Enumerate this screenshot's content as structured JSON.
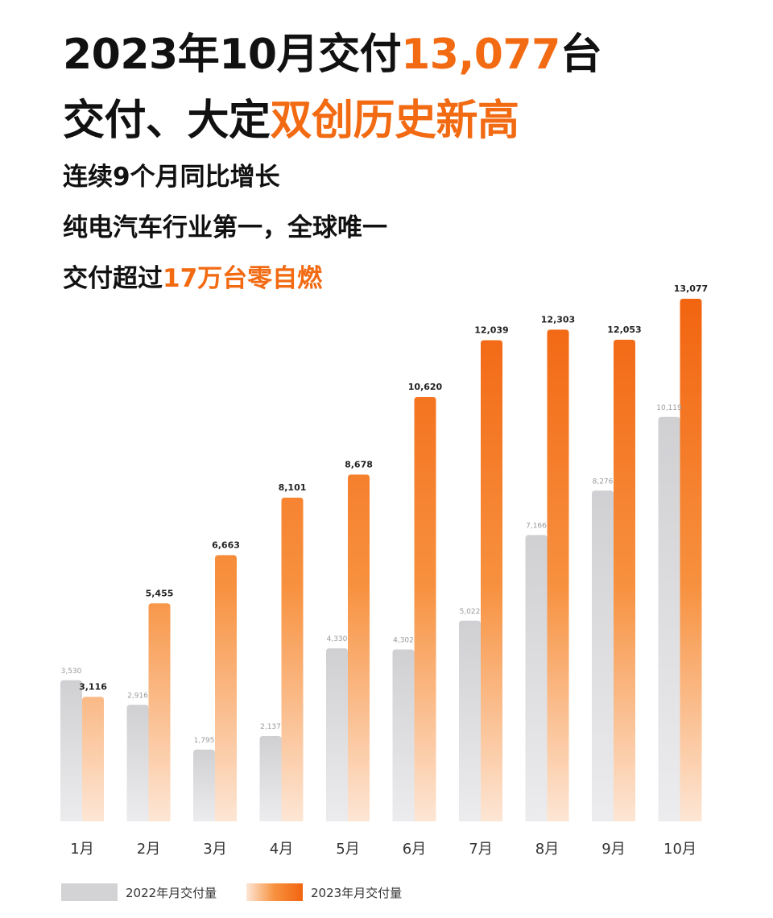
{
  "headline": {
    "line1_prefix": "2023年10月交付",
    "line1_highlight": "13,077",
    "line1_suffix": "台",
    "line2_prefix": "交付、大定",
    "line2_highlight": "双创历史新高"
  },
  "subheads": {
    "line1": "连续9个月同比增长",
    "line2": "纯电汽车行业第一，全球唯一",
    "line3_prefix": "交付超过",
    "line3_highlight": "17万台零自燃"
  },
  "colors": {
    "accent": "#f26a12",
    "bar_2022": "#d3d3d6",
    "bar_2023_top": "#f26410",
    "bar_2023_bottom": "#fde6d5"
  },
  "chart_data": {
    "type": "bar",
    "categories": [
      "1月",
      "2月",
      "3月",
      "4月",
      "5月",
      "6月",
      "7月",
      "8月",
      "9月",
      "10月"
    ],
    "series": [
      {
        "name": "2022年月交付量",
        "values": [
          3530,
          2916,
          1795,
          2137,
          4330,
          4302,
          5022,
          7166,
          8276,
          10119
        ]
      },
      {
        "name": "2023年月交付量",
        "values": [
          3116,
          5455,
          6663,
          8101,
          8678,
          10620,
          12039,
          12303,
          12053,
          13077
        ]
      }
    ],
    "value_labels_2022": [
      "3,530",
      "2,916",
      "1,795",
      "2,137",
      "4,330",
      "4,302",
      "5,022",
      "7,166",
      "8,276",
      "10,119"
    ],
    "value_labels_2023": [
      "3,116",
      "5,455",
      "6,663",
      "8,101",
      "8,678",
      "10,620",
      "12,039",
      "12,303",
      "12,053",
      "13,077"
    ],
    "ylim": [
      0,
      13077
    ],
    "grid": false,
    "legend_position": "bottom-left"
  },
  "legend": {
    "label_2022": "2022年月交付量",
    "label_2023": "2023年月交付量"
  }
}
